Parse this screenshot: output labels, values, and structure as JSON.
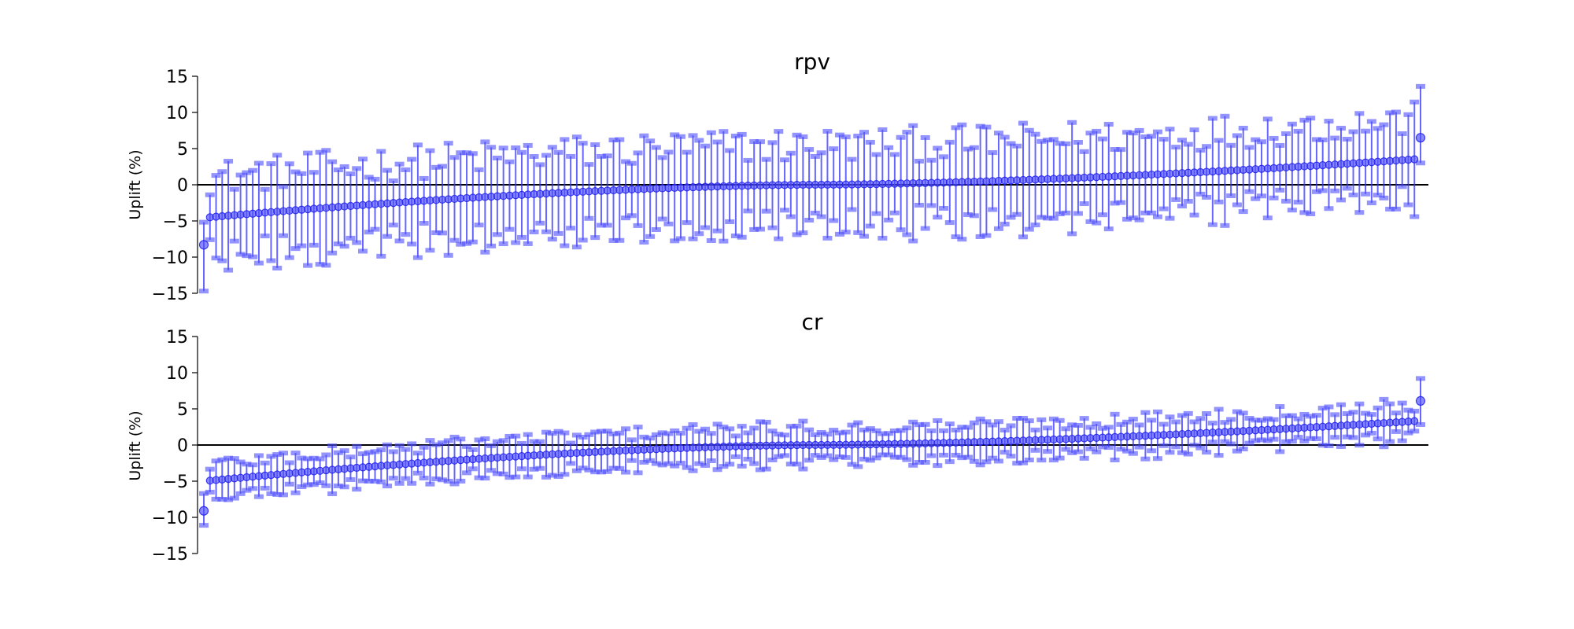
{
  "chart_data": [
    {
      "type": "scatter",
      "title": "rpv",
      "xlabel": "",
      "ylabel": "Uplift (%)",
      "ylim": [
        -15,
        15
      ],
      "yticks": [
        -15,
        -10,
        -5,
        0,
        5,
        10,
        15
      ],
      "ytick_labels": [
        "−15",
        "−10",
        "−5",
        "0",
        "5",
        "10",
        "15"
      ],
      "reference_line_y": 0,
      "grid": false,
      "sorted_ascending": true,
      "n_points": 200,
      "y_start": -8.3,
      "y_end": 6.5,
      "median_ci_halfwidth": 5.5,
      "lower_bound_at_start": -14.7,
      "upper_bound_at_end": 13.6
    },
    {
      "type": "scatter",
      "title": "cr",
      "xlabel": "",
      "ylabel": "Uplift (%)",
      "ylim": [
        -15,
        15
      ],
      "yticks": [
        -15,
        -10,
        -5,
        0,
        5,
        10,
        15
      ],
      "ytick_labels": [
        "−15",
        "−10",
        "−5",
        "0",
        "5",
        "10",
        "15"
      ],
      "reference_line_y": 0,
      "grid": false,
      "sorted_ascending": true,
      "n_points": 200,
      "y_start": -9.1,
      "y_end": 6.1,
      "median_ci_halfwidth": 2.3,
      "lower_bound_at_start": -11.1,
      "upper_bound_at_end": 9.2
    }
  ],
  "colors": {
    "points": "#4d4dff",
    "error_bars": "#3333ff",
    "reference_line": "#000000"
  }
}
